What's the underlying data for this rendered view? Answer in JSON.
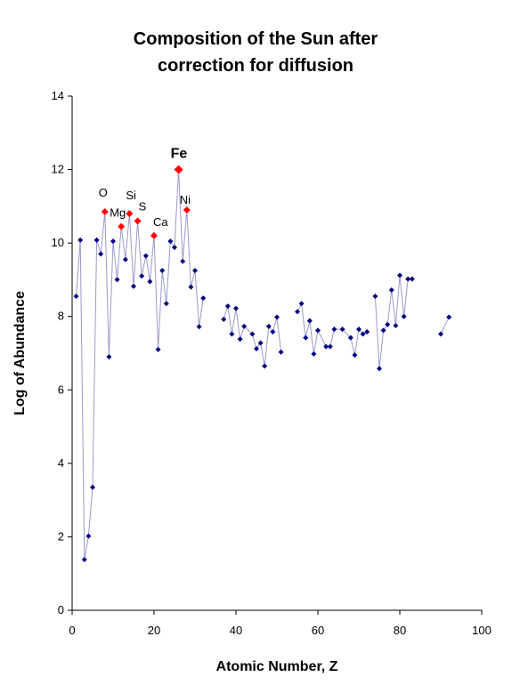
{
  "chart_data": {
    "type": "scatter",
    "title_lines": [
      "Composition of the Sun after",
      "correction for diffusion"
    ],
    "xlabel": "Atomic Number, Z",
    "ylabel": "Log of Abundance",
    "xlim": [
      0,
      100
    ],
    "ylim": [
      0,
      14
    ],
    "xticks": [
      0,
      20,
      40,
      60,
      80,
      100
    ],
    "yticks": [
      0,
      2,
      4,
      6,
      8,
      10,
      12,
      14
    ],
    "grid": false,
    "legend": "none",
    "line_color": "#9999cc",
    "marker_color": "#000080",
    "highlight_color": "#ff0000",
    "segments": [
      [
        [
          1,
          8.55
        ],
        [
          2,
          10.08
        ],
        [
          3,
          1.38
        ],
        [
          4,
          2.02
        ],
        [
          5,
          3.35
        ],
        [
          6,
          10.08
        ],
        [
          7,
          9.7
        ],
        [
          8,
          10.85
        ],
        [
          9,
          6.9
        ],
        [
          10,
          10.05
        ],
        [
          11,
          9.0
        ],
        [
          12,
          10.45
        ],
        [
          13,
          9.55
        ],
        [
          14,
          10.8
        ],
        [
          15,
          8.82
        ],
        [
          16,
          10.6
        ],
        [
          17,
          9.1
        ],
        [
          18,
          9.65
        ],
        [
          19,
          8.95
        ],
        [
          20,
          10.2
        ],
        [
          21,
          7.1
        ],
        [
          22,
          9.25
        ],
        [
          23,
          8.35
        ],
        [
          24,
          10.05
        ],
        [
          25,
          9.88
        ],
        [
          26,
          12.0
        ],
        [
          27,
          9.5
        ],
        [
          28,
          10.9
        ],
        [
          29,
          8.8
        ],
        [
          30,
          9.25
        ],
        [
          31,
          7.72
        ],
        [
          32,
          8.5
        ]
      ],
      [
        [
          37,
          7.92
        ],
        [
          38,
          8.28
        ],
        [
          39,
          7.52
        ],
        [
          40,
          8.22
        ],
        [
          41,
          7.38
        ],
        [
          42,
          7.73
        ],
        [
          44,
          7.52
        ],
        [
          45,
          7.12
        ],
        [
          46,
          7.28
        ],
        [
          47,
          6.65
        ],
        [
          48,
          7.73
        ],
        [
          49,
          7.58
        ],
        [
          50,
          7.98
        ],
        [
          51,
          7.03
        ]
      ],
      [
        [
          55,
          8.13
        ],
        [
          56,
          8.35
        ],
        [
          57,
          7.42
        ],
        [
          58,
          7.88
        ],
        [
          59,
          6.98
        ],
        [
          60,
          7.62
        ],
        [
          62,
          7.18
        ],
        [
          63,
          7.18
        ],
        [
          64,
          7.65
        ],
        [
          66,
          7.65
        ],
        [
          68,
          7.42
        ],
        [
          69,
          6.95
        ],
        [
          70,
          7.65
        ],
        [
          71,
          7.52
        ],
        [
          72,
          7.58
        ]
      ],
      [
        [
          74,
          8.55
        ],
        [
          75,
          6.58
        ],
        [
          76,
          7.62
        ],
        [
          77,
          7.78
        ],
        [
          78,
          8.72
        ],
        [
          79,
          7.75
        ],
        [
          80,
          9.12
        ],
        [
          81,
          8.0
        ],
        [
          82,
          9.02
        ],
        [
          83,
          9.02
        ]
      ],
      [
        [
          90,
          7.52
        ],
        [
          92,
          7.98
        ]
      ]
    ],
    "highlights": [
      {
        "label": "O",
        "x": 8,
        "y": 10.85
      },
      {
        "label": "Mg",
        "x": 12,
        "y": 10.45
      },
      {
        "label": "Si",
        "x": 14,
        "y": 10.8
      },
      {
        "label": "S",
        "x": 16,
        "y": 10.6
      },
      {
        "label": "Ca",
        "x": 20,
        "y": 10.2
      },
      {
        "label": "Fe",
        "x": 26,
        "y": 12.0
      },
      {
        "label": "Ni",
        "x": 28,
        "y": 10.9
      }
    ]
  }
}
